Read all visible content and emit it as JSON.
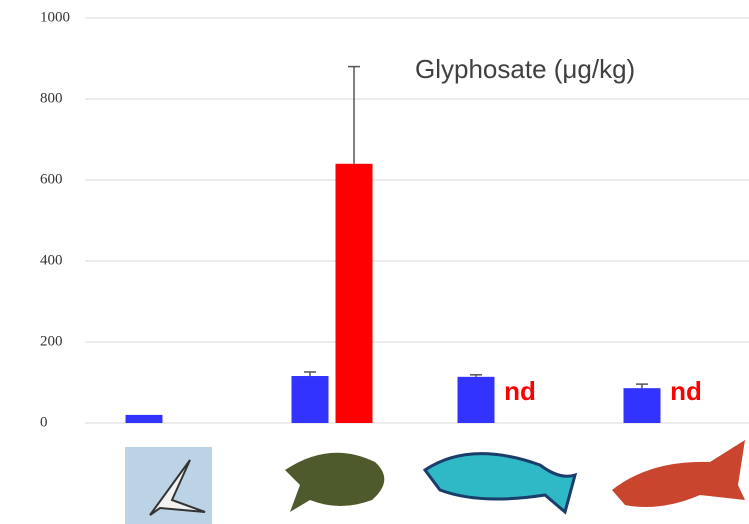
{
  "chart_data": {
    "type": "bar",
    "title": "Glyphosate (μg/kg)",
    "categories": [
      null,
      null,
      null,
      null
    ],
    "series": [
      {
        "color": "#3333ff",
        "values": [
          20,
          116,
          114,
          86
        ],
        "errors": [
          null,
          10,
          5,
          10
        ]
      },
      {
        "color": "#ff0000",
        "values": [
          null,
          640,
          null,
          null
        ],
        "errors": [
          null,
          240,
          null,
          null
        ],
        "value_labels": [
          null,
          null,
          "nd",
          "nd"
        ]
      }
    ],
    "ylim": [
      0,
      1000
    ],
    "yticks": [
      0,
      200,
      400,
      600,
      800,
      1000
    ],
    "grid": true
  }
}
